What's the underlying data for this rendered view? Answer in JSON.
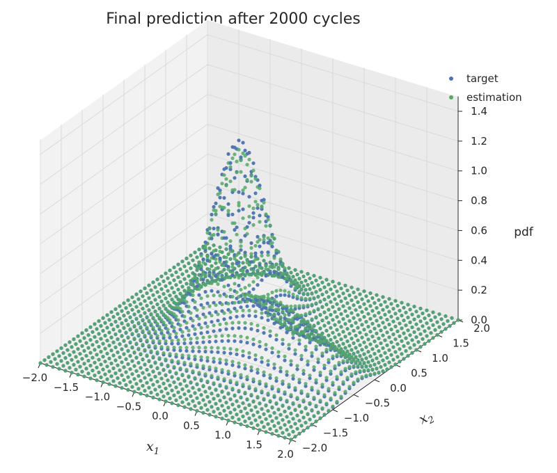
{
  "chart_data": {
    "type": "scatter",
    "title": "Final prediction after 2000 cycles",
    "xlabel": "x_1",
    "ylabel": "x_2",
    "zlabel": "pdf",
    "xlabel_main": "x",
    "xlabel_sub": "1",
    "ylabel_main": "x",
    "ylabel_sub": "2",
    "xlim": [
      -2.0,
      2.0
    ],
    "ylim": [
      -2.0,
      2.0
    ],
    "zlim": [
      0.0,
      1.4
    ],
    "xticks": [
      "−2.0",
      "−1.5",
      "−1.0",
      "−0.5",
      "0.0",
      "0.5",
      "1.0",
      "1.5",
      "2.0"
    ],
    "yticks": [
      "−2.0",
      "−1.5",
      "−1.0",
      "−0.5",
      "0.0",
      "0.5",
      "1.0",
      "1.5",
      "2.0"
    ],
    "zticks": [
      "0.0",
      "0.2",
      "0.4",
      "0.6",
      "0.8",
      "1.0",
      "1.2",
      "1.4"
    ],
    "grid": true,
    "legend_position": "top-right",
    "series": [
      {
        "name": "target",
        "color": "#4c72b0",
        "description": "pdf of a two-component distribution sampled on a regular 2-D grid: a tall peak near x1≈-0.5, x2≈0.5 reaching about 1.2 and a broad ridge along x2≈-0.5 up to about 0.45"
      },
      {
        "name": "estimation",
        "color": "#55a868",
        "description": "model estimate closely matching the target surface"
      }
    ],
    "grid_spacing": 0.1
  },
  "legend": {
    "items": [
      {
        "label": "target",
        "color": "#4c72b0"
      },
      {
        "label": "estimation",
        "color": "#55a868"
      }
    ]
  }
}
